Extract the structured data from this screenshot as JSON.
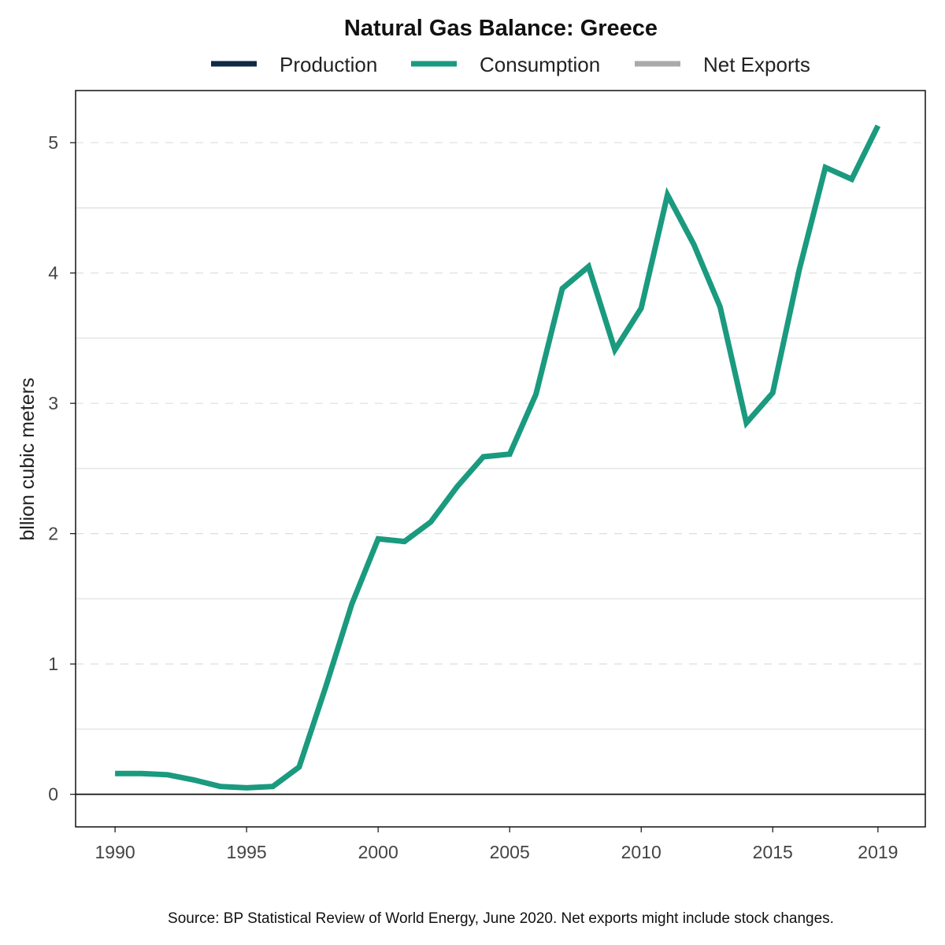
{
  "chart_data": {
    "type": "line",
    "title": "Natural Gas Balance: Greece",
    "ylabel": "bllion cubic meters",
    "xlabel": "",
    "xlim": [
      1988.5,
      2020.8
    ],
    "ylim": [
      -0.25,
      5.4
    ],
    "x_ticks": [
      1990,
      1995,
      2000,
      2005,
      2010,
      2015,
      2019
    ],
    "y_ticks": [
      0,
      1,
      2,
      3,
      4,
      5
    ],
    "grid": true,
    "legend": {
      "placement": "top",
      "entries": [
        {
          "name": "Production",
          "color": "#0d2b45"
        },
        {
          "name": "Consumption",
          "color": "#1a9a7e"
        },
        {
          "name": "Net Exports",
          "color": "#aaaaaa"
        }
      ]
    },
    "series": [
      {
        "name": "Consumption",
        "color": "#1a9a7e",
        "x": [
          1990,
          1991,
          1992,
          1993,
          1994,
          1995,
          1996,
          1997,
          1998,
          1999,
          2000,
          2001,
          2002,
          2003,
          2004,
          2005,
          2006,
          2007,
          2008,
          2009,
          2010,
          2011,
          2012,
          2013,
          2014,
          2015,
          2016,
          2017,
          2018,
          2019
        ],
        "y": [
          0.16,
          0.16,
          0.15,
          0.11,
          0.06,
          0.05,
          0.06,
          0.21,
          0.82,
          1.46,
          1.96,
          1.94,
          2.09,
          2.36,
          2.59,
          2.61,
          3.07,
          3.88,
          4.05,
          3.41,
          3.73,
          4.6,
          4.22,
          3.74,
          2.85,
          3.08,
          4.02,
          4.81,
          4.72,
          5.13
        ]
      }
    ],
    "source": "Source: BP Statistical Review of World Energy, June 2020. Net exports might include stock changes."
  }
}
